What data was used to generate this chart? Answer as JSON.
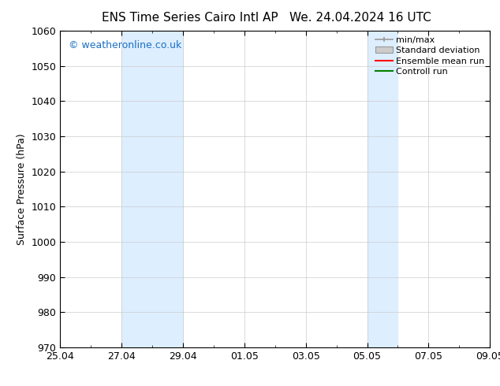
{
  "title_left": "ENS Time Series Cairo Intl AP",
  "title_right": "We. 24.04.2024 16 UTC",
  "ylabel": "Surface Pressure (hPa)",
  "ylim": [
    970,
    1060
  ],
  "yticks": [
    970,
    980,
    990,
    1000,
    1010,
    1020,
    1030,
    1040,
    1050,
    1060
  ],
  "xtick_labels": [
    "25.04",
    "27.04",
    "29.04",
    "01.05",
    "03.05",
    "05.05",
    "07.05",
    "09.05"
  ],
  "xtick_positions": [
    0,
    2,
    4,
    6,
    8,
    10,
    12,
    14
  ],
  "shaded_bands": [
    {
      "x_start": 2,
      "x_end": 4
    },
    {
      "x_start": 10,
      "x_end": 11
    }
  ],
  "shade_color": "#ddeeff",
  "watermark_text": "© weatheronline.co.uk",
  "watermark_color": "#1a6fc4",
  "bg_color": "#ffffff",
  "grid_color": "#cccccc",
  "title_fontsize": 11,
  "label_fontsize": 9,
  "tick_fontsize": 9
}
